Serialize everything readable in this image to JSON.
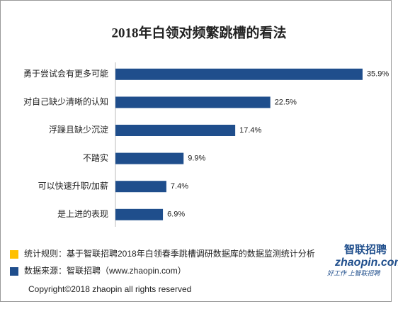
{
  "chart_data": {
    "type": "bar",
    "orientation": "horizontal",
    "title": "2018年白领对频繁跳槽的看法",
    "categories": [
      "勇于尝试会有更多可能",
      "对自己缺少清晰的认知",
      "浮躁且缺少沉淀",
      "不踏实",
      "可以快速升职/加薪",
      "是上进的表现"
    ],
    "values": [
      35.9,
      22.5,
      17.4,
      9.9,
      7.4,
      6.9
    ],
    "value_labels": [
      "35.9%",
      "22.5%",
      "17.4%",
      "9.9%",
      "7.4%",
      "6.9%"
    ],
    "color": "#1f4e8c",
    "notes": [
      "统计规则：基于智联招聘2018年白领春季跳槽调研数据库的数据监测统计分析",
      "数据来源：智联招聘（www.zhaopin.com）"
    ],
    "note_colors": [
      "#ffc000",
      "#1f4e8c"
    ],
    "logo": {
      "brand": "智联招聘",
      "site": "zhaopin.com",
      "slogan": "好工作 上智联招聘"
    },
    "copyright": "Copyright©2018 zhaopin all rights reserved"
  }
}
